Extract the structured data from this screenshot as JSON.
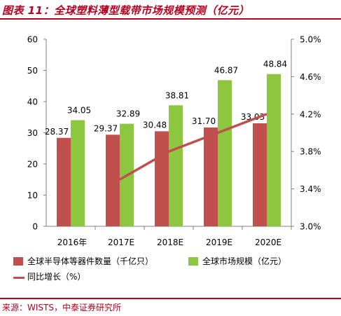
{
  "title": "图表 11：全球塑料薄型载带市场规模预测（亿元）",
  "source": "来源：WISTS，中泰证券研究所",
  "colors": {
    "accent": "#b8001e",
    "series_1": "#c0504d",
    "series_2": "#8dc63f",
    "series_3": "#c0504d"
  },
  "chart_data": {
    "type": "bar",
    "categories": [
      "2016年",
      "2017E",
      "2018E",
      "2019E",
      "2020E"
    ],
    "y_left": {
      "ylim": [
        0,
        60
      ],
      "ticks": [
        "0",
        "10",
        "20",
        "30",
        "40",
        "50",
        "60"
      ]
    },
    "y_right": {
      "ylim": [
        3.0,
        5.0
      ],
      "ticks": [
        "3.0%",
        "3.4%",
        "3.8%",
        "4.2%",
        "4.6%",
        "5.0%"
      ]
    },
    "series": [
      {
        "name": "全球半导体等器件数量（千亿只）",
        "type": "bar",
        "axis": "left",
        "values": [
          28.37,
          29.37,
          30.48,
          31.7,
          33.03
        ],
        "labels": [
          "28.37",
          "29.37",
          "30.48",
          "31.70",
          "33.03"
        ]
      },
      {
        "name": "全球市场规模（亿元）",
        "type": "bar",
        "axis": "left",
        "values": [
          34.05,
          32.89,
          38.81,
          46.87,
          48.84
        ],
        "labels": [
          "34.05",
          "32.89",
          "38.81",
          "46.87",
          "48.84"
        ]
      },
      {
        "name": "同比增长（%）",
        "type": "line",
        "axis": "right",
        "values": [
          null,
          3.5,
          3.8,
          4.0,
          4.2
        ]
      }
    ],
    "grid": false,
    "legend": "bottom"
  }
}
